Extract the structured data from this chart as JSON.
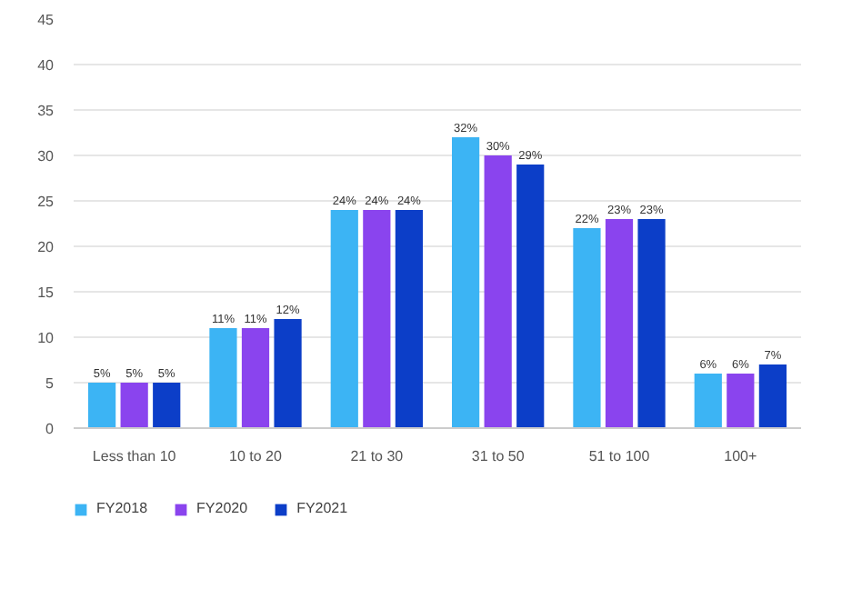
{
  "chart_data": {
    "type": "bar",
    "categories": [
      "Less than 10",
      "10 to 20",
      "21 to 30",
      "31 to 50",
      "51 to 100",
      "100+"
    ],
    "series": [
      {
        "name": "FY2018",
        "color": "#3cb4f4",
        "values": [
          5,
          11,
          24,
          32,
          22,
          6
        ],
        "value_labels": [
          "5%",
          "11%",
          "24%",
          "32%",
          "22%",
          "6%"
        ]
      },
      {
        "name": "FY2020",
        "color": "#8a44ee",
        "values": [
          5,
          11,
          24,
          30,
          23,
          6
        ],
        "value_labels": [
          "5%",
          "11%",
          "24%",
          "30%",
          "23%",
          "6%"
        ]
      },
      {
        "name": "FY2021",
        "color": "#0c3ec8",
        "values": [
          5,
          12,
          24,
          29,
          23,
          7
        ],
        "value_labels": [
          "5%",
          "12%",
          "24%",
          "29%",
          "23%",
          "7%"
        ]
      }
    ],
    "ylim": [
      0,
      45
    ],
    "yticks": [
      0,
      5,
      10,
      15,
      20,
      25,
      30,
      35,
      40,
      45
    ],
    "grid": "y",
    "legend": "bottom left"
  }
}
